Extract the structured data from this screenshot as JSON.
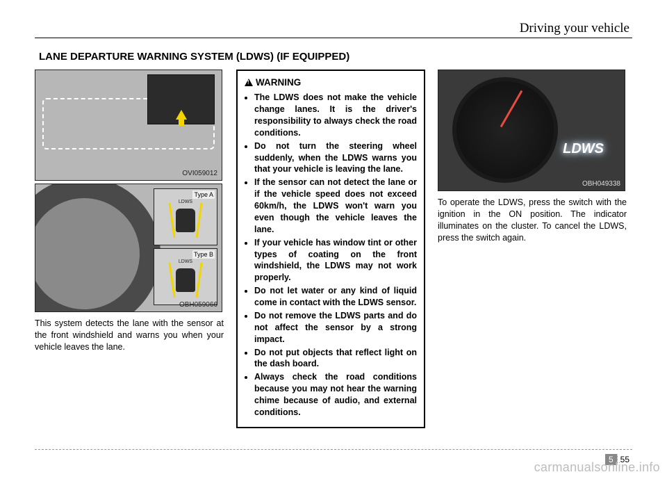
{
  "header": {
    "section": "Driving your vehicle"
  },
  "title": "LANE DEPARTURE WARNING SYSTEM (LDWS) (IF EQUIPPED)",
  "col1": {
    "fig1_code": "OVI059012",
    "fig2_code": "OBH059066",
    "fig2_typeA": "Type A",
    "fig2_typeB": "Type B",
    "fig2_ldws": "LDWS",
    "text": "This system detects the lane with the sensor at the front windshield and warns you when your vehicle leaves the lane."
  },
  "col2": {
    "warning_title": "WARNING",
    "items": [
      "The LDWS does not make the vehicle change lanes. It is the driver's responsibility to always check the road conditions.",
      "Do not turn the steering wheel suddenly, when the LDWS warns you that your vehicle is leaving the lane.",
      "If the sensor can not detect the lane or if the vehicle speed does not exceed 60km/h, the LDWS won't warn you even though the vehicle leaves the lane.",
      "If your vehicle has window tint or other types of coating on the front windshield, the LDWS may not work properly.",
      "Do not let water or any kind of liquid come in contact with the LDWS sensor.",
      "Do not remove the LDWS parts and do not affect the sensor by a strong impact.",
      "Do not put objects that reflect light on the dash board.",
      "Always check the road conditions because you may not hear the warning chime because of audio, and external conditions."
    ]
  },
  "col3": {
    "fig3_code": "OBH049338",
    "fig3_lamp": "LDWS",
    "text": "To operate the LDWS, press the switch with the ignition in the ON position. The indicator illuminates on the cluster. To cancel the LDWS, press the switch again."
  },
  "footer": {
    "chapter": "5",
    "page": "55"
  },
  "watermark": "carmanualsonline.info"
}
